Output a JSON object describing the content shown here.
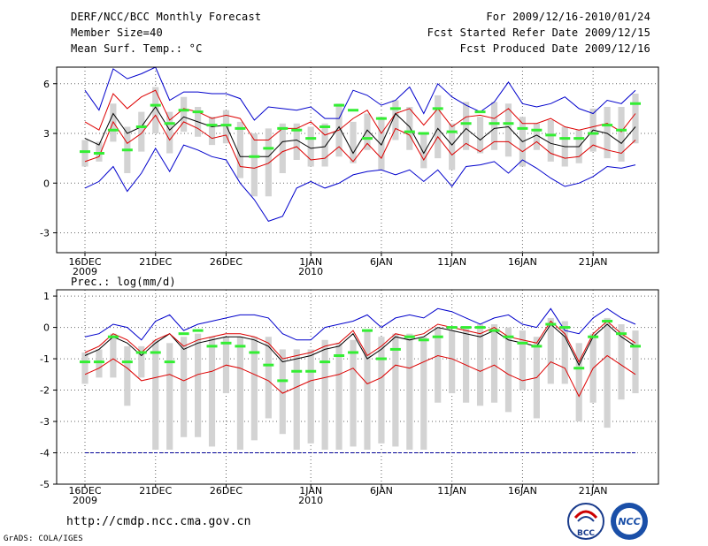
{
  "header": {
    "title": "DERF/NCC/BCC Monthly Forecast",
    "member_size": "Member Size=40",
    "variable": "Mean Surf. Temp.: °C",
    "period": "For 2009/12/16-2010/01/24",
    "refer_date": "Fcst Started Refer Date 2009/12/15",
    "produced_date": "Fcst Produced Date 2009/12/16"
  },
  "footer": {
    "url": "http://cmdp.ncc.cma.gov.cn",
    "grads": "GrADS: COLA/IGES",
    "logo_bcc_text": "BCC",
    "logo_ncc_text": "NCC"
  },
  "colors": {
    "envelope": "#0000cc",
    "spread": "#dd0000",
    "mean": "#000000",
    "obs": "#33ee33",
    "box": "#d3d3d3",
    "dash": "#000099"
  },
  "chart_data": [
    {
      "type": "line",
      "title": "Mean Surf. Temp.: °C",
      "x_tick_labels": [
        {
          "day": 1,
          "label": "16DEC",
          "sub": "2009"
        },
        {
          "day": 6,
          "label": "21DEC",
          "sub": ""
        },
        {
          "day": 11,
          "label": "26DEC",
          "sub": ""
        },
        {
          "day": 17,
          "label": "1JAN",
          "sub": "2010"
        },
        {
          "day": 22,
          "label": "6JAN",
          "sub": ""
        },
        {
          "day": 27,
          "label": "11JAN",
          "sub": ""
        },
        {
          "day": 32,
          "label": "16JAN",
          "sub": ""
        },
        {
          "day": 37,
          "label": "21JAN",
          "sub": ""
        }
      ],
      "y_ticks": [
        -3,
        0,
        3,
        6
      ],
      "ylim": [
        -4.2,
        7.0
      ],
      "days": 40,
      "series": [
        {
          "name": "max",
          "values": [
            5.6,
            4.4,
            6.9,
            6.3,
            6.6,
            7.0,
            5.0,
            5.5,
            5.5,
            5.4,
            5.4,
            5.1,
            3.8,
            4.6,
            4.5,
            4.4,
            4.6,
            3.9,
            3.9,
            5.6,
            5.3,
            4.7,
            5.0,
            5.8,
            4.2,
            6.0,
            5.2,
            4.7,
            4.3,
            4.9,
            6.1,
            4.8,
            4.6,
            4.8,
            5.2,
            4.5,
            4.2,
            5.0,
            4.8,
            5.6
          ]
        },
        {
          "name": "upper",
          "values": [
            3.7,
            3.2,
            5.4,
            4.5,
            5.2,
            5.6,
            3.8,
            4.5,
            4.3,
            3.9,
            4.1,
            3.9,
            2.6,
            2.6,
            3.3,
            3.3,
            3.7,
            2.9,
            3.2,
            3.9,
            4.4,
            3.0,
            4.2,
            4.5,
            3.5,
            4.5,
            3.4,
            4.0,
            4.1,
            3.9,
            4.5,
            3.6,
            3.6,
            3.9,
            3.4,
            3.2,
            3.4,
            3.6,
            3.1,
            4.2
          ]
        },
        {
          "name": "mean",
          "values": [
            2.7,
            2.3,
            4.2,
            3.0,
            3.4,
            4.6,
            3.2,
            4.0,
            3.7,
            3.4,
            3.5,
            1.6,
            1.6,
            1.6,
            2.5,
            2.6,
            2.1,
            2.2,
            3.4,
            1.8,
            3.2,
            2.3,
            4.2,
            3.4,
            1.8,
            3.3,
            2.3,
            3.3,
            2.6,
            3.3,
            3.4,
            2.5,
            2.9,
            2.4,
            2.2,
            2.2,
            3.2,
            3.0,
            2.4,
            3.4
          ]
        },
        {
          "name": "lower",
          "values": [
            1.3,
            1.6,
            3.7,
            2.4,
            3.0,
            4.1,
            2.6,
            3.7,
            3.3,
            2.7,
            2.9,
            1.0,
            0.9,
            1.2,
            1.9,
            2.2,
            1.4,
            1.5,
            2.2,
            1.3,
            2.4,
            1.5,
            3.3,
            2.9,
            1.4,
            2.8,
            1.7,
            2.4,
            1.9,
            2.5,
            2.5,
            1.9,
            2.5,
            1.8,
            1.5,
            1.6,
            2.3,
            2.0,
            1.8,
            2.6
          ]
        },
        {
          "name": "min",
          "values": [
            -0.3,
            0.1,
            1.0,
            -0.5,
            0.6,
            2.1,
            0.7,
            2.3,
            2.0,
            1.6,
            1.4,
            0.0,
            -1.0,
            -2.3,
            -2.0,
            -0.3,
            0.1,
            -0.3,
            0.0,
            0.5,
            0.7,
            0.8,
            0.5,
            0.8,
            0.1,
            0.8,
            -0.2,
            1.0,
            1.1,
            1.3,
            0.6,
            1.4,
            0.9,
            0.3,
            -0.2,
            0.0,
            0.4,
            1.0,
            0.9,
            1.1
          ]
        },
        {
          "name": "obs",
          "values": [
            1.9,
            1.8,
            3.2,
            2.0,
            3.4,
            4.7,
            3.6,
            4.4,
            4.3,
            3.5,
            3.5,
            3.3,
            1.6,
            2.1,
            3.3,
            3.2,
            2.7,
            3.4,
            4.7,
            4.4,
            2.7,
            3.9,
            4.5,
            3.1,
            3.0,
            4.5,
            3.1,
            3.6,
            4.3,
            3.6,
            3.6,
            3.3,
            3.2,
            2.9,
            2.7,
            2.7,
            3.0,
            3.5,
            3.2,
            4.8
          ]
        }
      ],
      "boxes": [
        [
          1.0,
          2.6
        ],
        [
          1.3,
          2.5
        ],
        [
          2.5,
          4.8
        ],
        [
          0.6,
          3.4
        ],
        [
          1.9,
          4.3
        ],
        [
          3.0,
          5.8
        ],
        [
          1.8,
          4.3
        ],
        [
          3.1,
          5.2
        ],
        [
          2.8,
          4.6
        ],
        [
          2.3,
          4.0
        ],
        [
          2.4,
          4.4
        ],
        [
          0.3,
          3.7
        ],
        [
          -0.8,
          3.0
        ],
        [
          -0.8,
          3.3
        ],
        [
          0.6,
          3.6
        ],
        [
          1.4,
          3.6
        ],
        [
          1.0,
          3.4
        ],
        [
          1.0,
          3.6
        ],
        [
          1.6,
          4.8
        ],
        [
          1.2,
          3.7
        ],
        [
          2.0,
          4.2
        ],
        [
          0.8,
          4.0
        ],
        [
          2.6,
          5.0
        ],
        [
          2.0,
          4.6
        ],
        [
          0.9,
          3.0
        ],
        [
          1.5,
          5.3
        ],
        [
          0.8,
          3.6
        ],
        [
          2.0,
          4.9
        ],
        [
          1.8,
          4.0
        ],
        [
          2.0,
          4.9
        ],
        [
          1.6,
          4.8
        ],
        [
          1.0,
          4.0
        ],
        [
          2.0,
          3.6
        ],
        [
          1.3,
          3.8
        ],
        [
          1.0,
          3.4
        ],
        [
          1.2,
          3.2
        ],
        [
          1.9,
          4.5
        ],
        [
          1.5,
          4.6
        ],
        [
          1.3,
          4.6
        ],
        [
          2.4,
          5.4
        ]
      ]
    },
    {
      "type": "line",
      "title": "Prec.: log(mm/d)",
      "x_tick_labels": [
        {
          "day": 1,
          "label": "16DEC",
          "sub": "2009"
        },
        {
          "day": 6,
          "label": "21DEC",
          "sub": ""
        },
        {
          "day": 11,
          "label": "26DEC",
          "sub": ""
        },
        {
          "day": 17,
          "label": "1JAN",
          "sub": "2010"
        },
        {
          "day": 22,
          "label": "6JAN",
          "sub": ""
        },
        {
          "day": 27,
          "label": "11JAN",
          "sub": ""
        },
        {
          "day": 32,
          "label": "16JAN",
          "sub": ""
        },
        {
          "day": 37,
          "label": "21JAN",
          "sub": ""
        }
      ],
      "y_ticks": [
        -5,
        -4,
        -3,
        -2,
        -1,
        0,
        1
      ],
      "ylim": [
        -5,
        1.2
      ],
      "days": 40,
      "dashed_line": -4,
      "series": [
        {
          "name": "max",
          "values": [
            -0.3,
            -0.2,
            0.1,
            0.0,
            -0.4,
            0.2,
            0.4,
            -0.1,
            0.1,
            0.2,
            0.3,
            0.4,
            0.4,
            0.3,
            -0.2,
            -0.4,
            -0.4,
            0.0,
            0.1,
            0.2,
            0.4,
            0.0,
            0.3,
            0.4,
            0.3,
            0.6,
            0.5,
            0.3,
            0.1,
            0.3,
            0.4,
            0.1,
            0.0,
            0.6,
            -0.1,
            -0.2,
            0.3,
            0.6,
            0.3,
            0.1
          ]
        },
        {
          "name": "mean",
          "values": [
            -0.9,
            -0.7,
            -0.3,
            -0.5,
            -0.9,
            -0.5,
            -0.2,
            -0.7,
            -0.5,
            -0.4,
            -0.3,
            -0.3,
            -0.4,
            -0.6,
            -1.1,
            -1.0,
            -0.9,
            -0.7,
            -0.6,
            -0.2,
            -1.0,
            -0.7,
            -0.3,
            -0.4,
            -0.3,
            0.0,
            -0.1,
            -0.2,
            -0.3,
            -0.1,
            -0.4,
            -0.5,
            -0.6,
            0.1,
            -0.3,
            -1.2,
            -0.3,
            0.1,
            -0.3,
            -0.6
          ]
        },
        {
          "name": "upper",
          "values": [
            -0.8,
            -0.6,
            -0.2,
            -0.4,
            -0.8,
            -0.4,
            -0.2,
            -0.6,
            -0.4,
            -0.3,
            -0.2,
            -0.2,
            -0.3,
            -0.5,
            -1.0,
            -0.9,
            -0.8,
            -0.6,
            -0.5,
            -0.1,
            -0.9,
            -0.6,
            -0.2,
            -0.3,
            -0.2,
            0.1,
            0.0,
            -0.1,
            -0.2,
            0.0,
            -0.3,
            -0.4,
            -0.5,
            0.2,
            -0.2,
            -1.1,
            -0.2,
            0.2,
            -0.2,
            -0.5
          ]
        },
        {
          "name": "lower",
          "values": [
            -1.5,
            -1.3,
            -1.0,
            -1.3,
            -1.7,
            -1.6,
            -1.5,
            -1.7,
            -1.5,
            -1.4,
            -1.2,
            -1.3,
            -1.5,
            -1.7,
            -2.1,
            -1.9,
            -1.7,
            -1.6,
            -1.5,
            -1.3,
            -1.8,
            -1.6,
            -1.2,
            -1.3,
            -1.1,
            -0.9,
            -1.0,
            -1.2,
            -1.4,
            -1.2,
            -1.5,
            -1.7,
            -1.6,
            -1.1,
            -1.3,
            -2.2,
            -1.3,
            -0.9,
            -1.2,
            -1.5
          ]
        },
        {
          "name": "obs",
          "values": [
            -1.1,
            -1.1,
            -0.3,
            -1.1,
            -0.8,
            -0.8,
            -1.1,
            -0.2,
            -0.1,
            -0.6,
            -0.5,
            -0.6,
            -0.8,
            -1.2,
            -1.7,
            -1.4,
            -1.4,
            -1.1,
            -0.9,
            -0.8,
            -0.1,
            -1.0,
            -0.7,
            -0.3,
            -0.4,
            -0.3,
            0.0,
            0.0,
            0.0,
            -0.1,
            -0.3,
            -0.5,
            -0.6,
            0.1,
            0.0,
            -1.3,
            -0.3,
            0.2,
            -0.2,
            -0.6
          ]
        }
      ],
      "boxes": [
        [
          -1.8,
          -0.8
        ],
        [
          -1.6,
          -0.7
        ],
        [
          -1.6,
          -0.2
        ],
        [
          -2.5,
          -0.6
        ],
        [
          -1.6,
          -0.6
        ],
        [
          -3.9,
          -0.4
        ],
        [
          -3.9,
          -0.5
        ],
        [
          -3.5,
          -0.3
        ],
        [
          -3.5,
          -0.2
        ],
        [
          -3.8,
          -0.3
        ],
        [
          -2.1,
          -0.3
        ],
        [
          -3.9,
          -0.3
        ],
        [
          -3.6,
          -0.3
        ],
        [
          -2.9,
          -0.3
        ],
        [
          -3.4,
          -0.7
        ],
        [
          -3.9,
          -0.7
        ],
        [
          -3.7,
          -0.7
        ],
        [
          -3.9,
          -0.4
        ],
        [
          -3.9,
          -0.5
        ],
        [
          -3.8,
          -0.4
        ],
        [
          -3.9,
          -0.1
        ],
        [
          -3.7,
          -0.3
        ],
        [
          -3.8,
          -0.2
        ],
        [
          -3.9,
          -0.2
        ],
        [
          -3.9,
          -0.3
        ],
        [
          -2.4,
          0.0
        ],
        [
          -2.1,
          -0.1
        ],
        [
          -2.4,
          0.0
        ],
        [
          -2.5,
          0.1
        ],
        [
          -2.4,
          0.1
        ],
        [
          -2.7,
          0.0
        ],
        [
          -2.0,
          -0.1
        ],
        [
          -2.9,
          -0.3
        ],
        [
          -1.8,
          0.3
        ],
        [
          -1.8,
          0.2
        ],
        [
          -3.0,
          -0.5
        ],
        [
          -2.4,
          -0.2
        ],
        [
          -3.2,
          0.3
        ],
        [
          -2.3,
          0.1
        ],
        [
          -2.1,
          -0.1
        ]
      ]
    }
  ]
}
